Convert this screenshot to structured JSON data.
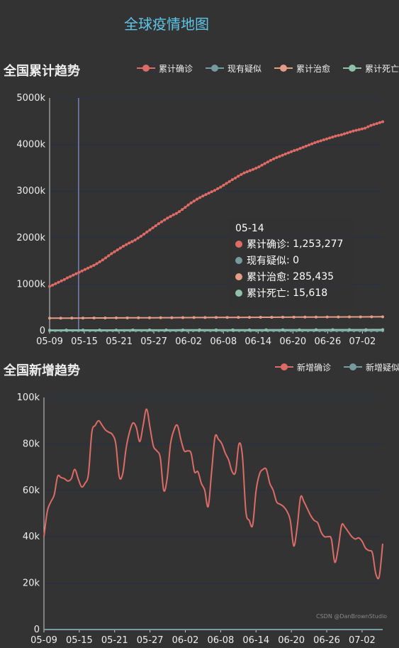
{
  "page": {
    "title": "全球疫情地图"
  },
  "colors": {
    "confirmed": "#dd6b66",
    "suspected": "#759aa0",
    "healed": "#e69d87",
    "dead": "#8dc1a9",
    "grid": "#24304a",
    "axis": "#cccccc"
  },
  "tooltip": {
    "date": "05-14",
    "rows": [
      {
        "name": "累计确诊",
        "value": "1,253,277"
      },
      {
        "name": "现有疑似",
        "value": "0"
      },
      {
        "name": "累计治愈",
        "value": "285,435"
      },
      {
        "name": "累计死亡",
        "value": "15,618"
      }
    ]
  },
  "watermark": "CSDN @DanBrownStudio",
  "chart_data": [
    {
      "type": "line",
      "title": "全国累计趋势",
      "x_labels": [
        "05-09",
        "05-15",
        "05-21",
        "05-27",
        "06-02",
        "06-08",
        "06-14",
        "06-20",
        "06-26",
        "07-02"
      ],
      "ylim": [
        0,
        5000
      ],
      "y_ticks": [
        "0",
        "1000k",
        "2000k",
        "3000k",
        "4000k",
        "5000k"
      ],
      "y_unit": "k",
      "legend": [
        "累计确诊",
        "现有疑似",
        "累计治愈",
        "累计死亡"
      ],
      "legend_position": "top-right",
      "series": [
        {
          "name": "累计确诊",
          "values": [
            950,
            980,
            1010,
            1040,
            1070,
            1100,
            1135,
            1165,
            1195,
            1225,
            1255,
            1285,
            1315,
            1345,
            1375,
            1405,
            1440,
            1480,
            1520,
            1565,
            1610,
            1655,
            1695,
            1735,
            1775,
            1815,
            1850,
            1885,
            1915,
            1950,
            1990,
            2030,
            2075,
            2120,
            2165,
            2210,
            2255,
            2300,
            2340,
            2380,
            2420,
            2455,
            2490,
            2520,
            2560,
            2605,
            2650,
            2700,
            2745,
            2785,
            2825,
            2860,
            2895,
            2925,
            2955,
            2985,
            3015,
            3050,
            3085,
            3125,
            3165,
            3205,
            3245,
            3280,
            3320,
            3355,
            3390,
            3415,
            3440,
            3465,
            3490,
            3520,
            3555,
            3590,
            3625,
            3660,
            3690,
            3720,
            3745,
            3770,
            3795,
            3820,
            3845,
            3870,
            3890,
            3915,
            3940,
            3965,
            3990,
            4015,
            4040,
            4060,
            4080,
            4100,
            4120,
            4140,
            4160,
            4180,
            4195,
            4210,
            4230,
            4250,
            4270,
            4290,
            4305,
            4320,
            4335,
            4350,
            4380,
            4410,
            4430,
            4450,
            4470,
            4490
          ]
        },
        {
          "name": "现有疑似",
          "values": [
            0,
            0
          ]
        },
        {
          "name": "累计治愈",
          "values": [
            270,
            271,
            272,
            273,
            274,
            275,
            276,
            277,
            278,
            279,
            280,
            281,
            282,
            283,
            284,
            285,
            286,
            287,
            288,
            289,
            290,
            291,
            292,
            293,
            294,
            295,
            296,
            297,
            298,
            299,
            300
          ]
        },
        {
          "name": "累计死亡",
          "values": [
            14,
            14.5,
            15,
            15.6,
            16,
            16.5,
            17,
            17.5,
            18,
            18.5,
            19,
            19.5,
            20,
            20.5,
            21,
            21.5,
            22,
            22.5,
            23,
            23.5,
            24
          ]
        }
      ],
      "highlight_x": "05-14"
    },
    {
      "type": "line",
      "title": "全国新增趋势",
      "x_labels": [
        "05-09",
        "05-15",
        "05-21",
        "05-27",
        "06-02",
        "06-08",
        "06-14",
        "06-20",
        "06-26",
        "07-02"
      ],
      "ylim": [
        0,
        100
      ],
      "y_ticks": [
        "0",
        "20k",
        "40k",
        "60k",
        "80k",
        "100k"
      ],
      "y_unit": "k",
      "legend": [
        "新增确诊",
        "新增疑似"
      ],
      "legend_position": "top-right",
      "series": [
        {
          "name": "新增确诊",
          "values": [
            40,
            51,
            55,
            58,
            66,
            65.5,
            65,
            64,
            65,
            69,
            65,
            61.5,
            63,
            67,
            85,
            88,
            90,
            88,
            86,
            85,
            84,
            80,
            66,
            67,
            78,
            85,
            89,
            87,
            81,
            88,
            95,
            87,
            79,
            77,
            74,
            60,
            65,
            80,
            86,
            88,
            82,
            77,
            77,
            76,
            68,
            68,
            63,
            60,
            53,
            68,
            83,
            82,
            80,
            76,
            73,
            68,
            68,
            80,
            75,
            51,
            47,
            45,
            60,
            67,
            69,
            69,
            63,
            60,
            55,
            54,
            53,
            51,
            47,
            36,
            44,
            57,
            55,
            52,
            49,
            47,
            46,
            42,
            40,
            40,
            39,
            29,
            35,
            45,
            44,
            42,
            40,
            39,
            39.5,
            38,
            35,
            34,
            33,
            24,
            23,
            37
          ]
        },
        {
          "name": "新增疑似",
          "values": [
            0,
            0
          ]
        }
      ]
    }
  ]
}
